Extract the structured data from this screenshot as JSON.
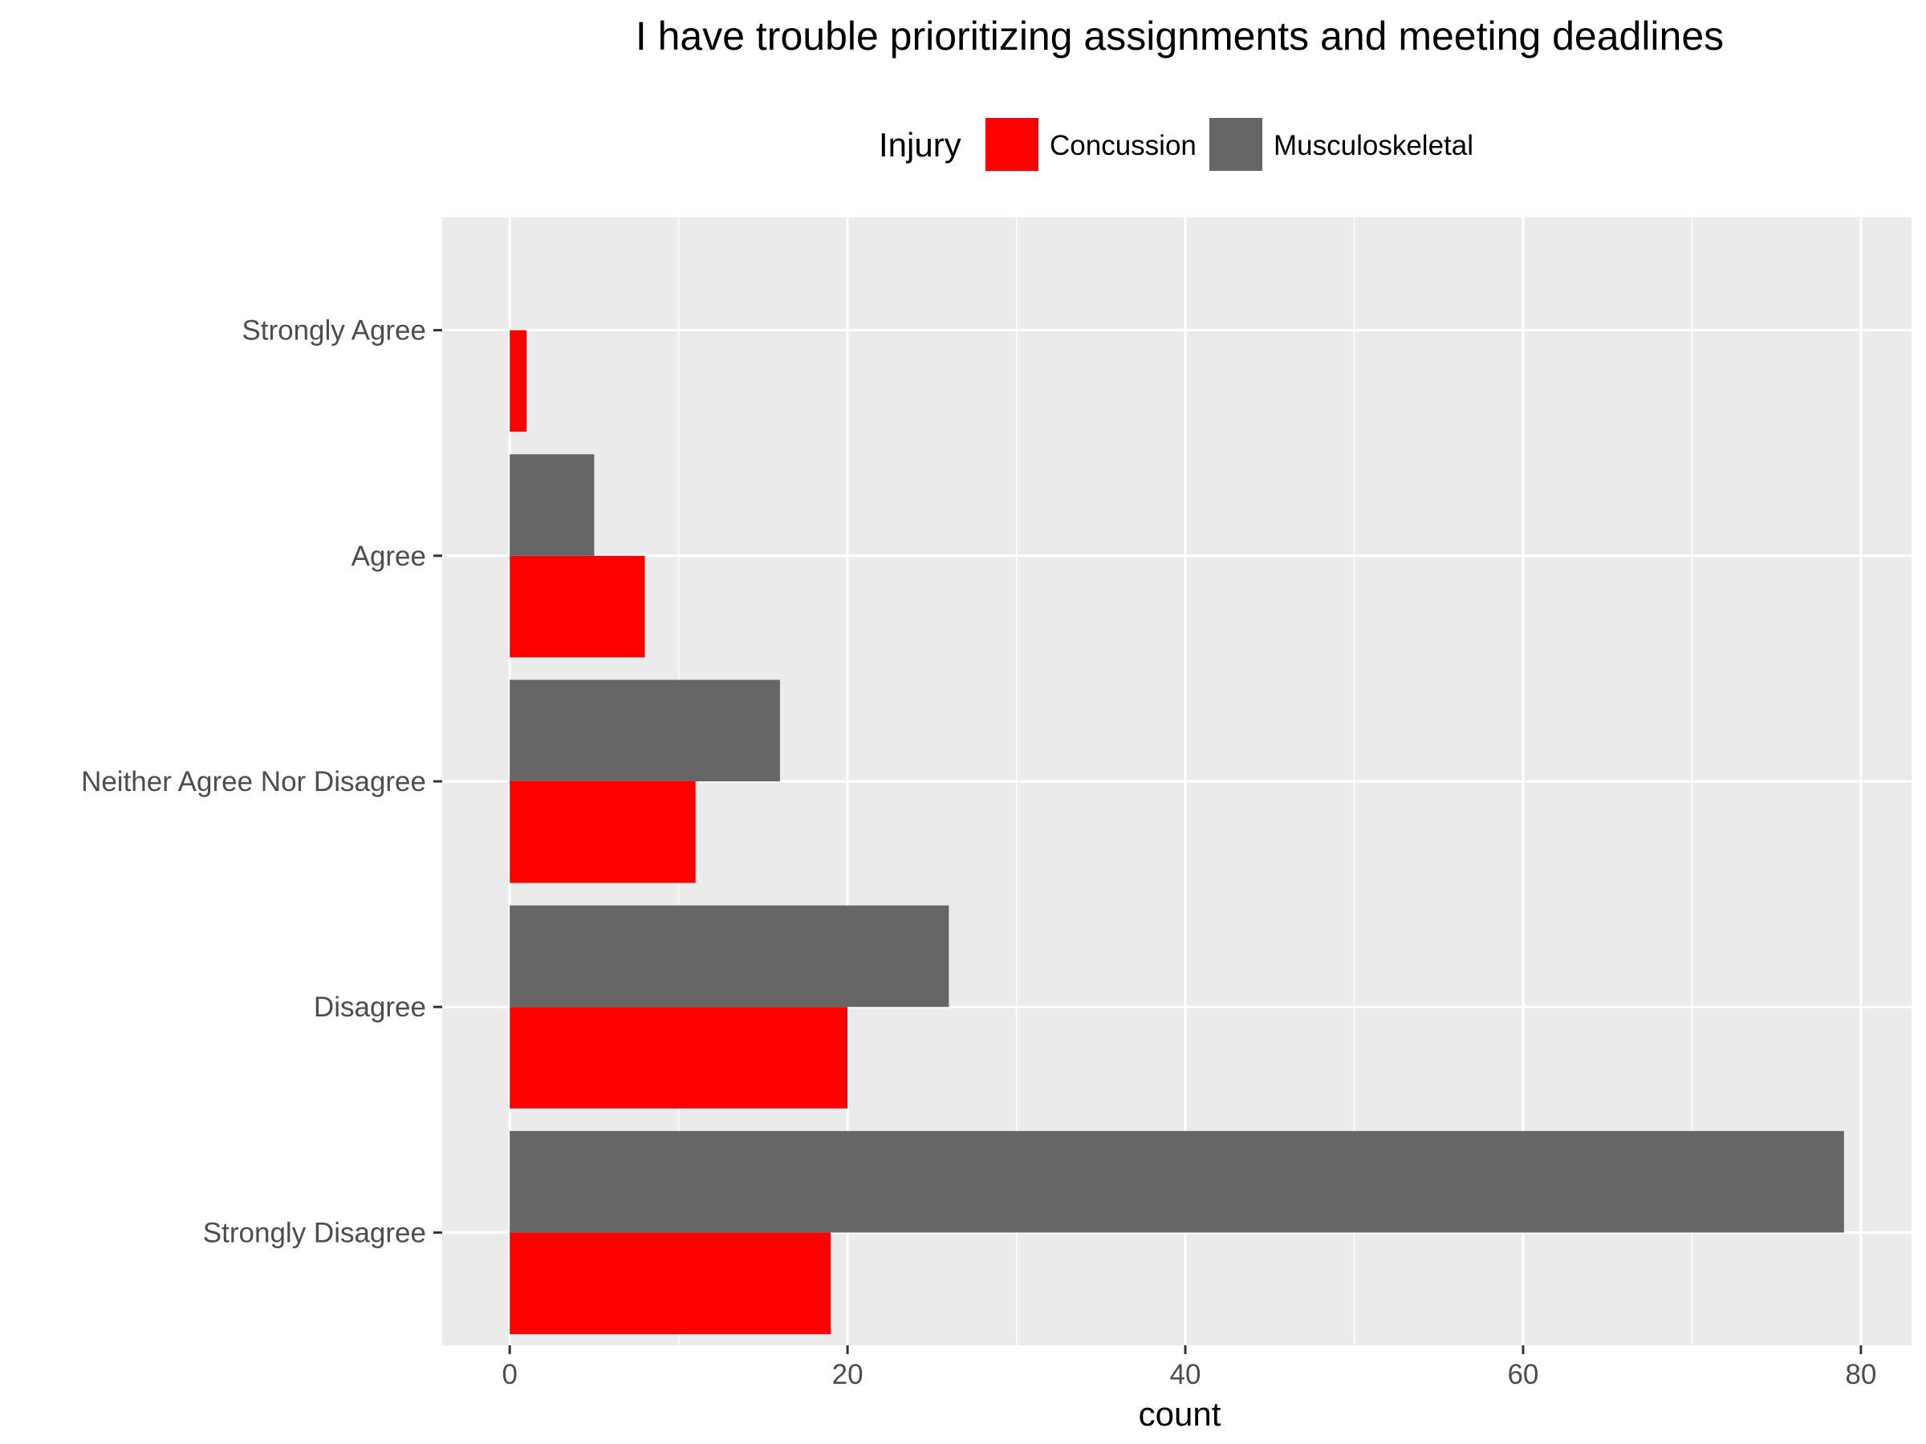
{
  "chart_data": {
    "type": "bar",
    "orientation": "horizontal",
    "title": "I have trouble prioritizing assignments and meeting deadlines",
    "xlabel": "count",
    "ylabel": "",
    "xlim": [
      -4,
      83
    ],
    "x_ticks": [
      0,
      20,
      40,
      60,
      80
    ],
    "categories": [
      "Strongly Agree",
      "Agree",
      "Neither Agree Nor Disagree",
      "Disagree",
      "Strongly Disagree"
    ],
    "legend": {
      "title": "Injury",
      "position": "top"
    },
    "series": [
      {
        "name": "Concussion",
        "color": "#ff0000",
        "values": [
          1,
          8,
          11,
          20,
          19
        ]
      },
      {
        "name": "Musculoskeletal",
        "color": "#666666",
        "values": [
          0,
          5,
          16,
          26,
          79
        ]
      }
    ],
    "grid": true,
    "panel_color": "#ebebeb"
  }
}
